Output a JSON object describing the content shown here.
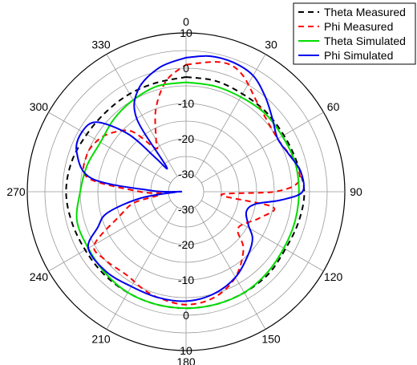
{
  "chart_data": {
    "type": "polar-line",
    "title": "",
    "angle_ticks": [
      "0",
      "30",
      "60",
      "90",
      "120",
      "150",
      "180",
      "210",
      "240",
      "270",
      "300",
      "330"
    ],
    "radial_ticks": [
      "-30",
      "-20",
      "-10",
      "0",
      "10"
    ],
    "r_range": [
      -35,
      10
    ],
    "grid": true,
    "legend_position": "top-right",
    "series": [
      {
        "name": "Theta Measured",
        "color": "#000000",
        "style": "dashed",
        "points": [
          [
            0,
            -2.5
          ],
          [
            15,
            -2.5
          ],
          [
            30,
            -3
          ],
          [
            45,
            -3
          ],
          [
            60,
            -3
          ],
          [
            75,
            -2.5
          ],
          [
            90,
            -1.5
          ],
          [
            105,
            -2
          ],
          [
            120,
            -2.5
          ],
          [
            135,
            -2
          ],
          [
            150,
            -2
          ],
          [
            165,
            -2
          ],
          [
            180,
            -2
          ],
          [
            195,
            -2
          ],
          [
            210,
            -2
          ],
          [
            225,
            -2
          ],
          [
            240,
            -2
          ],
          [
            255,
            -1.5
          ],
          [
            270,
            -1
          ],
          [
            285,
            -1.5
          ],
          [
            300,
            -2.5
          ],
          [
            315,
            -3
          ],
          [
            330,
            -3
          ],
          [
            345,
            -3
          ],
          [
            360,
            -2.5
          ]
        ]
      },
      {
        "name": "Phi Measured",
        "color": "#ff0000",
        "style": "dashed",
        "points": [
          [
            0,
            1
          ],
          [
            15,
            3
          ],
          [
            25,
            2
          ],
          [
            40,
            -3
          ],
          [
            60,
            -5
          ],
          [
            75,
            -3
          ],
          [
            85,
            -3
          ],
          [
            90,
            -10
          ],
          [
            95,
            -25
          ],
          [
            100,
            -10
          ],
          [
            110,
            -13
          ],
          [
            125,
            -17
          ],
          [
            135,
            -12
          ],
          [
            150,
            -7
          ],
          [
            165,
            -4
          ],
          [
            180,
            -3
          ],
          [
            195,
            -4
          ],
          [
            205,
            -5
          ],
          [
            215,
            -6
          ],
          [
            230,
            -5
          ],
          [
            240,
            -5
          ],
          [
            250,
            -15
          ],
          [
            258,
            -20
          ],
          [
            265,
            -28
          ],
          [
            270,
            -22
          ],
          [
            278,
            -7
          ],
          [
            290,
            -5
          ],
          [
            300,
            -6
          ],
          [
            308,
            -8
          ],
          [
            318,
            -12
          ],
          [
            325,
            -20
          ],
          [
            330,
            -18
          ],
          [
            340,
            -10
          ],
          [
            350,
            -3
          ],
          [
            360,
            1
          ]
        ]
      },
      {
        "name": "Theta Simulated",
        "color": "#00dd00",
        "style": "solid",
        "points": [
          [
            0,
            -4
          ],
          [
            15,
            -4
          ],
          [
            30,
            -4
          ],
          [
            45,
            -3.5
          ],
          [
            60,
            -3.5
          ],
          [
            75,
            -3
          ],
          [
            90,
            -3
          ],
          [
            105,
            -3
          ],
          [
            120,
            -3
          ],
          [
            135,
            -2.5
          ],
          [
            150,
            -2
          ],
          [
            165,
            -2
          ],
          [
            180,
            -2
          ],
          [
            195,
            -2
          ],
          [
            210,
            -2
          ],
          [
            225,
            -2.5
          ],
          [
            240,
            -3
          ],
          [
            255,
            -3
          ],
          [
            270,
            -5
          ],
          [
            285,
            -6
          ],
          [
            300,
            -7
          ],
          [
            315,
            -6
          ],
          [
            330,
            -5
          ],
          [
            345,
            -4
          ],
          [
            360,
            -4
          ]
        ]
      },
      {
        "name": "Phi Simulated",
        "color": "#0000ee",
        "style": "solid",
        "points": [
          [
            0,
            3
          ],
          [
            10,
            4
          ],
          [
            20,
            4
          ],
          [
            30,
            3
          ],
          [
            40,
            0
          ],
          [
            50,
            -3
          ],
          [
            60,
            -5
          ],
          [
            70,
            -4
          ],
          [
            80,
            -2
          ],
          [
            90,
            -2
          ],
          [
            95,
            -8
          ],
          [
            100,
            -15
          ],
          [
            108,
            -17
          ],
          [
            118,
            -15
          ],
          [
            125,
            -12
          ],
          [
            135,
            -10
          ],
          [
            150,
            -7
          ],
          [
            165,
            -5
          ],
          [
            180,
            -4
          ],
          [
            195,
            -4
          ],
          [
            210,
            -4
          ],
          [
            225,
            -3
          ],
          [
            240,
            -3
          ],
          [
            248,
            -8
          ],
          [
            255,
            -12
          ],
          [
            262,
            -22
          ],
          [
            268,
            -32
          ],
          [
            270,
            -33
          ],
          [
            272,
            -25
          ],
          [
            278,
            -8
          ],
          [
            290,
            -2
          ],
          [
            300,
            -1
          ],
          [
            308,
            -3
          ],
          [
            315,
            -12
          ],
          [
            318,
            -22
          ],
          [
            322,
            -26
          ],
          [
            326,
            -10
          ],
          [
            335,
            -3
          ],
          [
            348,
            1
          ],
          [
            360,
            3
          ]
        ]
      }
    ]
  }
}
